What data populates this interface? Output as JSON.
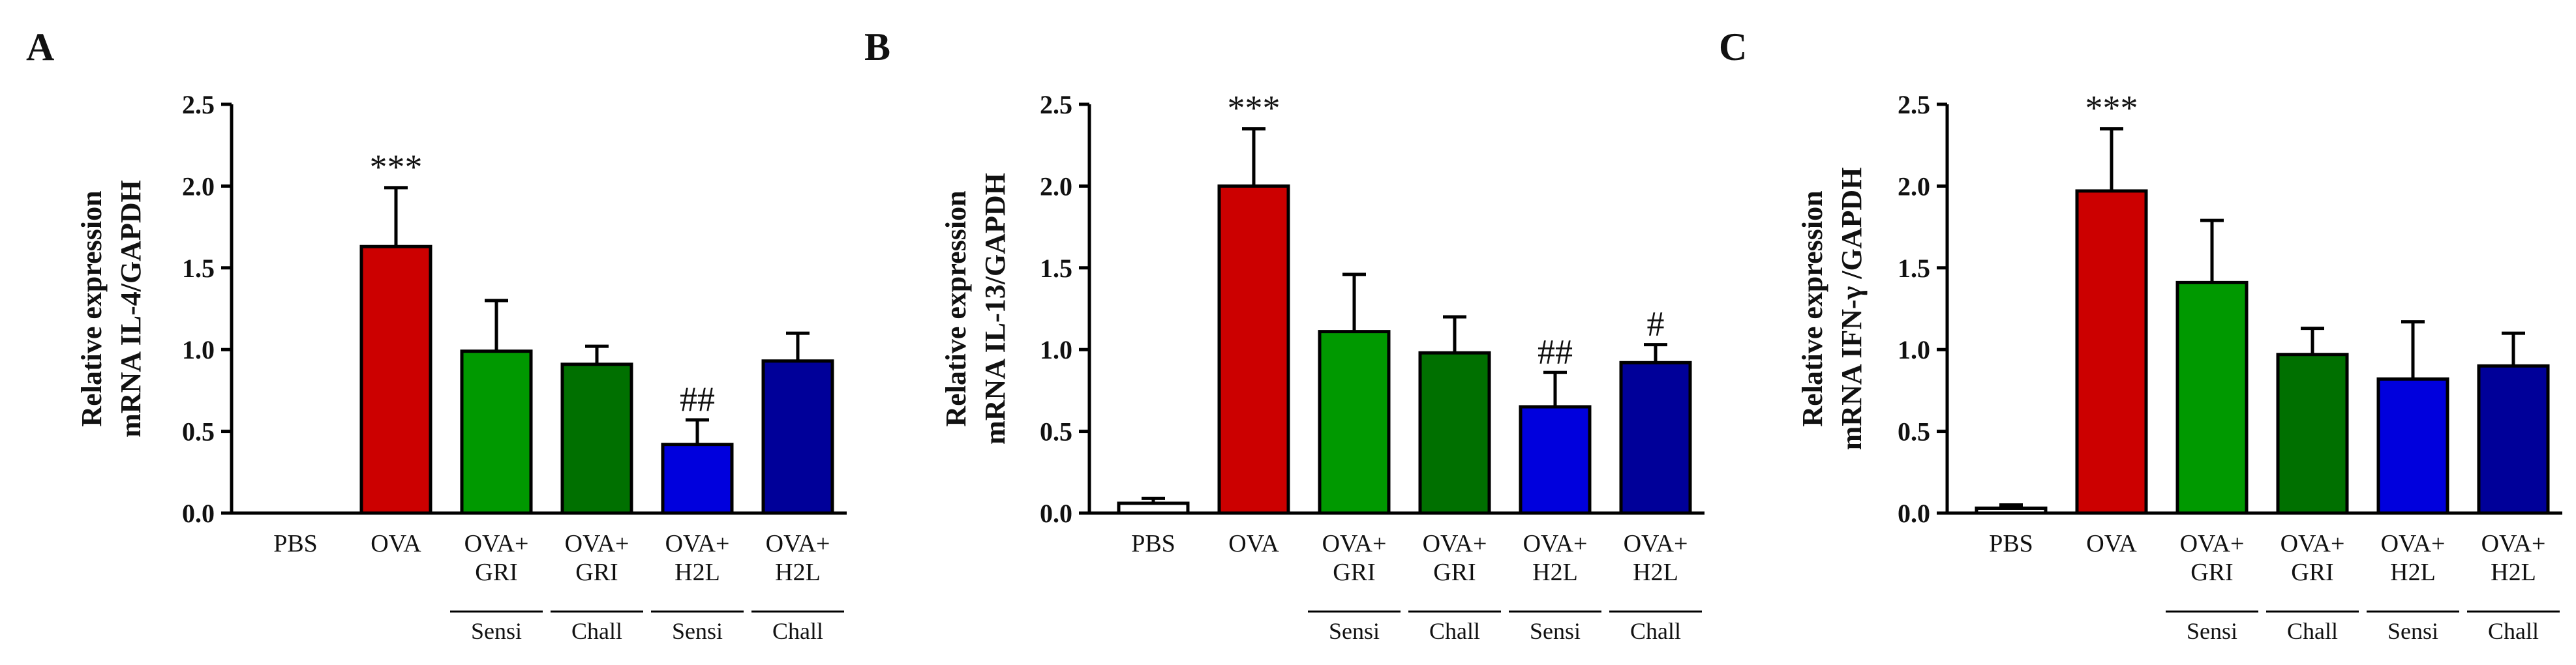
{
  "chart_data": [
    {
      "type": "bar",
      "panel": "A",
      "ylabel_lines": [
        "Relative expression",
        "mRNA IL-4/GAPDH"
      ],
      "ylim": [
        0,
        2.5
      ],
      "yticks": [
        "0.0",
        "0.5",
        "1.0",
        "1.5",
        "2.0",
        "2.5"
      ],
      "categories": [
        [
          "PBS"
        ],
        [
          "OVA"
        ],
        [
          "OVA+",
          "GRI"
        ],
        [
          "OVA+",
          "GRI"
        ],
        [
          "OVA+",
          "H2L"
        ],
        [
          "OVA+",
          "H2L"
        ]
      ],
      "groups": [
        "Sensi",
        "Chall",
        "Sensi",
        "Chall"
      ],
      "values": [
        0,
        1.63,
        0.99,
        0.91,
        0.42,
        0.93
      ],
      "errors": [
        0,
        0.36,
        0.31,
        0.11,
        0.15,
        0.17
      ],
      "annotations": [
        "",
        "***",
        "",
        "",
        "##",
        ""
      ],
      "colors": [
        "#ffffff",
        "#cc0000",
        "#009900",
        "#007000",
        "#0000dd",
        "#000099"
      ]
    },
    {
      "type": "bar",
      "panel": "B",
      "ylabel_lines": [
        "Relative expression",
        "mRNA IL-13/GAPDH"
      ],
      "ylim": [
        0,
        2.5
      ],
      "yticks": [
        "0.0",
        "0.5",
        "1.0",
        "1.5",
        "2.0",
        "2.5"
      ],
      "categories": [
        [
          "PBS"
        ],
        [
          "OVA"
        ],
        [
          "OVA+",
          "GRI"
        ],
        [
          "OVA+",
          "GRI"
        ],
        [
          "OVA+",
          "H2L"
        ],
        [
          "OVA+",
          "H2L"
        ]
      ],
      "groups": [
        "Sensi",
        "Chall",
        "Sensi",
        "Chall"
      ],
      "values": [
        0.06,
        2.0,
        1.11,
        0.98,
        0.65,
        0.92
      ],
      "errors": [
        0.03,
        0.35,
        0.35,
        0.22,
        0.21,
        0.11
      ],
      "annotations": [
        "",
        "***",
        "",
        "",
        "##",
        "#"
      ],
      "colors": [
        "#ffffff",
        "#cc0000",
        "#009900",
        "#007000",
        "#0000dd",
        "#000099"
      ]
    },
    {
      "type": "bar",
      "panel": "C",
      "ylabel_lines": [
        "Relative expression",
        "mRNA IFN-γ /GAPDH"
      ],
      "ylim": [
        0,
        2.5
      ],
      "yticks": [
        "0.0",
        "0.5",
        "1.0",
        "1.5",
        "2.0",
        "2.5"
      ],
      "categories": [
        [
          "PBS"
        ],
        [
          "OVA"
        ],
        [
          "OVA+",
          "GRI"
        ],
        [
          "OVA+",
          "GRI"
        ],
        [
          "OVA+",
          "H2L"
        ],
        [
          "OVA+",
          "H2L"
        ]
      ],
      "groups": [
        "Sensi",
        "Chall",
        "Sensi",
        "Chall"
      ],
      "values": [
        0.03,
        1.97,
        1.41,
        0.97,
        0.82,
        0.9
      ],
      "errors": [
        0.02,
        0.38,
        0.38,
        0.16,
        0.35,
        0.2
      ],
      "annotations": [
        "",
        "***",
        "",
        "",
        "",
        ""
      ],
      "colors": [
        "#ffffff",
        "#cc0000",
        "#009900",
        "#007000",
        "#0000dd",
        "#000099"
      ]
    }
  ]
}
